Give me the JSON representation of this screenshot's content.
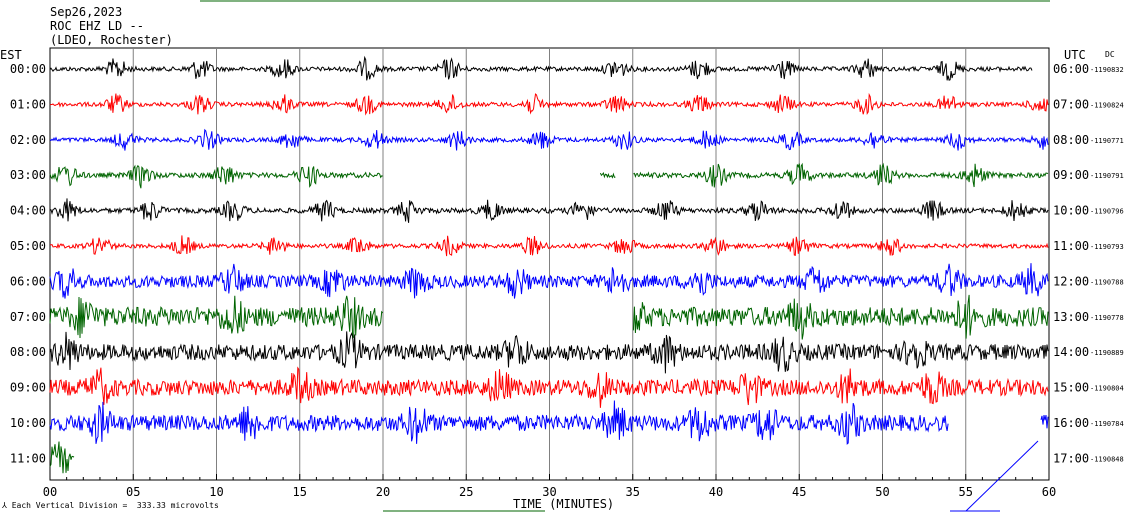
{
  "header": {
    "date": "Sep26,2023",
    "station": "ROC EHZ LD --",
    "network": "(LDEO, Rochester)"
  },
  "left_zone": "EST",
  "right_zone": "UTC",
  "right_zone_note": "DC",
  "footer": {
    "scale_text": "Each Vertical Division =  333.33 microvolts",
    "xlabel": "TIME (MINUTES)"
  },
  "colors": {
    "black": "#000000",
    "red": "#ff0000",
    "blue": "#0000ff",
    "green": "#006400",
    "grid": "#808080"
  },
  "chart_data": {
    "type": "line",
    "xlabel": "TIME (MINUTES)",
    "xlim": [
      0,
      60
    ],
    "x_ticks": [
      "00",
      "05",
      "10",
      "15",
      "20",
      "25",
      "30",
      "35",
      "40",
      "45",
      "50",
      "55",
      "60"
    ],
    "rows": [
      {
        "est": "00:00",
        "utc": "06:00",
        "dc": "-1190832",
        "color": "#000000",
        "amp": 0.12,
        "bursts": [
          4,
          9,
          14,
          19,
          24,
          34,
          39,
          44,
          49,
          54
        ],
        "burst_amp": 0.55,
        "gaps": [
          [
            59,
            60
          ]
        ]
      },
      {
        "est": "01:00",
        "utc": "07:00",
        "dc": "-1190824",
        "color": "#ff0000",
        "amp": 0.12,
        "bursts": [
          4,
          9,
          14,
          19,
          24,
          29,
          34,
          39,
          44,
          49,
          54,
          59.5
        ],
        "burst_amp": 0.5,
        "gaps": []
      },
      {
        "est": "02:00",
        "utc": "08:00",
        "dc": "-1190771",
        "color": "#0000ff",
        "amp": 0.12,
        "bursts": [
          4.5,
          9.5,
          14.5,
          19.5,
          24.5,
          29.5,
          34.5,
          39.5,
          44.5,
          49.5,
          54.5,
          59.8
        ],
        "burst_amp": 0.5,
        "gaps": []
      },
      {
        "est": "03:00",
        "utc": "09:00",
        "dc": "-1190791",
        "color": "#006400",
        "amp": 0.14,
        "bursts": [
          1,
          5.5,
          10.5,
          15.5,
          40,
          45,
          50,
          55.5
        ],
        "burst_amp": 0.6,
        "gaps": [
          [
            20,
            33
          ],
          [
            34,
            35
          ]
        ]
      },
      {
        "est": "04:00",
        "utc": "10:00",
        "dc": "-1190796",
        "color": "#000000",
        "amp": 0.14,
        "bursts": [
          1,
          6,
          11,
          16.5,
          21.5,
          26.5,
          32,
          37,
          42.5,
          47.5,
          53,
          58
        ],
        "burst_amp": 0.55,
        "gaps": []
      },
      {
        "est": "05:00",
        "utc": "11:00",
        "dc": "-1190793",
        "color": "#ff0000",
        "amp": 0.12,
        "bursts": [
          3,
          8,
          13.5,
          18.5,
          24,
          29,
          34.5,
          40,
          45,
          50.5
        ],
        "burst_amp": 0.5,
        "gaps": []
      },
      {
        "est": "06:00",
        "utc": "12:00",
        "dc": "-1190788",
        "color": "#0000ff",
        "amp": 0.35,
        "bursts": [
          1,
          11,
          17,
          22,
          28,
          34,
          39,
          46,
          54,
          59
        ],
        "burst_amp": 0.7,
        "gaps": []
      },
      {
        "est": "07:00",
        "utc": "13:00",
        "dc": "-1190778",
        "color": "#006400",
        "amp": 0.55,
        "bursts": [
          2,
          11,
          18,
          35,
          45,
          55
        ],
        "burst_amp": 0.8,
        "gaps": [
          [
            20,
            35
          ]
        ]
      },
      {
        "est": "08:00",
        "utc": "14:00",
        "dc": "-1190889",
        "color": "#000000",
        "amp": 0.45,
        "bursts": [
          1,
          18,
          28,
          37,
          44,
          52
        ],
        "burst_amp": 0.8,
        "gaps": []
      },
      {
        "est": "09:00",
        "utc": "15:00",
        "dc": "-1190804",
        "color": "#ff0000",
        "amp": 0.45,
        "bursts": [
          3,
          15,
          27,
          33,
          42,
          48,
          53
        ],
        "burst_amp": 0.75,
        "gaps": []
      },
      {
        "est": "10:00",
        "utc": "16:00",
        "dc": "-1190784",
        "color": "#0000ff",
        "amp": 0.45,
        "bursts": [
          3,
          12,
          22,
          34,
          39,
          43,
          48
        ],
        "burst_amp": 0.85,
        "gaps": [
          [
            54,
            59.5
          ]
        ]
      },
      {
        "est": "11:00",
        "utc": "17:00",
        "dc": "-1190848",
        "color": "#006400",
        "amp": 0.4,
        "bursts": [
          0.6
        ],
        "burst_amp": 0.6,
        "gaps": [
          [
            1.5,
            60
          ]
        ]
      }
    ]
  }
}
